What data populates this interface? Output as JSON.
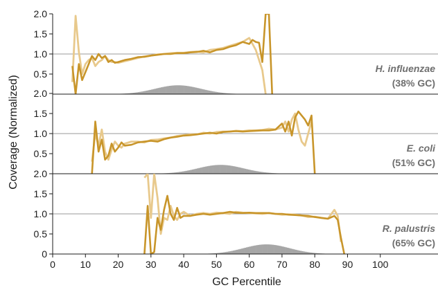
{
  "chart_data": {
    "type": "line",
    "xlabel": "GC Percentile",
    "ylabel": "Coverage (Normalized)",
    "xlim": [
      0,
      110
    ],
    "ylim": [
      0,
      2.0
    ],
    "x_ticks": [
      0,
      10,
      20,
      30,
      40,
      50,
      60,
      70,
      80,
      90,
      100
    ],
    "y_ticks": [
      "0",
      "0.5",
      "1.0",
      "1.5",
      "2.0"
    ],
    "grid": "horizontal reference line at 1.0 only",
    "colors": {
      "dark_series": "#c8952a",
      "light_series": "#e8c98c",
      "histogram": "#a6a6a6",
      "reference": "#9a9a9a",
      "organism_label": "#6e6e6e"
    },
    "panels": [
      {
        "organism": "H. influenzae",
        "gc_label": "(38% GC)",
        "series": [
          {
            "x": [
              6,
              7,
              8,
              9,
              10,
              11,
              12,
              13,
              14,
              15,
              16,
              17,
              18,
              19,
              20,
              22,
              24,
              26,
              28,
              30,
              32,
              34,
              36,
              38,
              40,
              42,
              44,
              46,
              48,
              50,
              52,
              54,
              56,
              58,
              60,
              61,
              62,
              63,
              64,
              65,
              66,
              67
            ],
            "y": [
              0.7,
              0.0,
              0.75,
              0.35,
              0.55,
              0.75,
              0.95,
              0.85,
              1.0,
              0.9,
              0.95,
              0.8,
              0.85,
              0.78,
              0.8,
              0.85,
              0.88,
              0.92,
              0.93,
              0.96,
              0.98,
              1.0,
              1.0,
              1.02,
              1.02,
              1.04,
              1.05,
              1.08,
              1.04,
              1.1,
              1.12,
              1.18,
              1.22,
              1.3,
              1.25,
              1.35,
              1.3,
              1.28,
              0.8,
              2.0,
              2.0,
              0.0
            ]
          },
          {
            "x": [
              6,
              7,
              8,
              9,
              10,
              11,
              12,
              13,
              14,
              15,
              16,
              17,
              18,
              19,
              20,
              22,
              24,
              26,
              28,
              30,
              32,
              34,
              36,
              38,
              40,
              42,
              44,
              46,
              48,
              50,
              52,
              54,
              56,
              58,
              60,
              61,
              62,
              63,
              64,
              65
            ],
            "y": [
              0.3,
              1.95,
              1.05,
              0.5,
              0.75,
              0.85,
              0.9,
              0.7,
              0.8,
              0.85,
              0.95,
              0.85,
              0.8,
              0.8,
              0.78,
              0.82,
              0.86,
              0.9,
              0.94,
              0.96,
              0.99,
              1.0,
              1.02,
              1.03,
              1.03,
              1.05,
              1.06,
              1.04,
              1.1,
              1.12,
              1.15,
              1.2,
              1.25,
              1.3,
              1.4,
              1.25,
              1.1,
              0.85,
              0.6,
              0.0
            ]
          }
        ],
        "histogram": {
          "center": 38,
          "spread": 7,
          "max": 0.22
        }
      },
      {
        "organism": "E. coli",
        "gc_label": "(51% GC)",
        "series": [
          {
            "x": [
              12,
              13,
              14,
              15,
              16,
              17,
              18,
              19,
              20,
              21,
              22,
              24,
              26,
              28,
              30,
              32,
              34,
              36,
              38,
              40,
              42,
              44,
              46,
              48,
              50,
              52,
              54,
              56,
              58,
              60,
              62,
              64,
              66,
              68,
              70,
              71,
              72,
              73,
              74,
              75,
              76,
              77,
              78,
              79,
              80
            ],
            "y": [
              0.0,
              1.3,
              0.55,
              0.85,
              0.35,
              0.45,
              0.75,
              0.55,
              0.65,
              0.78,
              0.7,
              0.72,
              0.78,
              0.8,
              0.82,
              0.8,
              0.86,
              0.9,
              0.92,
              0.95,
              0.96,
              0.98,
              1.0,
              1.02,
              1.0,
              1.04,
              1.05,
              1.06,
              1.05,
              1.06,
              1.07,
              1.08,
              1.08,
              1.1,
              1.25,
              1.05,
              1.3,
              0.95,
              1.4,
              1.55,
              1.45,
              1.35,
              1.2,
              1.45,
              0.0
            ]
          },
          {
            "x": [
              12,
              13,
              14,
              15,
              16,
              17,
              18,
              19,
              20,
              21,
              22,
              24,
              26,
              28,
              30,
              32,
              34,
              36,
              38,
              40,
              42,
              44,
              46,
              48,
              50,
              52,
              54,
              56,
              58,
              60,
              62,
              64,
              66,
              68,
              70,
              71,
              72,
              73,
              74,
              75,
              76,
              77,
              78,
              79
            ],
            "y": [
              0.3,
              1.0,
              0.7,
              1.1,
              0.55,
              0.35,
              0.6,
              0.8,
              0.7,
              0.65,
              0.75,
              0.8,
              0.8,
              0.78,
              0.84,
              0.85,
              0.88,
              0.9,
              0.94,
              0.96,
              0.98,
              0.98,
              1.02,
              1.0,
              1.04,
              1.05,
              1.05,
              1.07,
              1.06,
              1.08,
              1.08,
              1.09,
              1.12,
              1.1,
              1.15,
              1.3,
              1.05,
              1.35,
              1.5,
              1.1,
              0.8,
              0.7,
              1.0,
              1.3
            ]
          }
        ],
        "histogram": {
          "center": 51,
          "spread": 7,
          "max": 0.22
        }
      },
      {
        "organism": "R. palustris",
        "gc_label": "(65% GC)",
        "series": [
          {
            "x": [
              28,
              29,
              30,
              31,
              32,
              33,
              34,
              35,
              36,
              37,
              38,
              39,
              40,
              42,
              44,
              46,
              48,
              50,
              52,
              54,
              56,
              58,
              60,
              62,
              64,
              66,
              68,
              70,
              72,
              74,
              76,
              78,
              80,
              82,
              84,
              86,
              87,
              88,
              89
            ],
            "y": [
              0.0,
              1.2,
              0.0,
              0.05,
              0.9,
              0.6,
              1.1,
              1.45,
              1.0,
              0.85,
              1.15,
              0.9,
              0.95,
              0.95,
              0.98,
              1.0,
              0.98,
              1.0,
              1.02,
              1.05,
              1.03,
              1.02,
              1.03,
              1.02,
              1.02,
              1.02,
              1.0,
              1.0,
              0.98,
              0.97,
              0.96,
              0.95,
              0.92,
              0.9,
              0.88,
              0.95,
              0.85,
              0.4,
              0.0
            ]
          },
          {
            "x": [
              28,
              29,
              30,
              31,
              32,
              33,
              34,
              35,
              36,
              37,
              38,
              39,
              40,
              42,
              44,
              46,
              48,
              50,
              52,
              54,
              56,
              58,
              60,
              62,
              64,
              66,
              68,
              70,
              72,
              74,
              76,
              78,
              80,
              82,
              84,
              86,
              87,
              88
            ],
            "y": [
              1.9,
              2.0,
              0.9,
              2.0,
              1.4,
              0.5,
              0.9,
              0.85,
              1.2,
              0.95,
              0.85,
              1.0,
              1.05,
              0.95,
              1.0,
              1.02,
              1.0,
              1.03,
              1.02,
              1.0,
              1.05,
              1.03,
              1.02,
              1.01,
              1.0,
              1.02,
              1.0,
              0.98,
              0.99,
              0.98,
              0.96,
              0.92,
              0.93,
              0.9,
              0.88,
              1.1,
              0.95,
              0.3
            ]
          }
        ],
        "histogram": {
          "center": 65,
          "spread": 7,
          "max": 0.24
        }
      }
    ]
  }
}
